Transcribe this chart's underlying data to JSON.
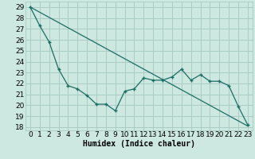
{
  "title": "",
  "xlabel": "Humidex (Indice chaleur)",
  "background_color": "#cce8e0",
  "grid_color": "#aaccc4",
  "line_color": "#1a6e62",
  "xlim": [
    -0.5,
    23.5
  ],
  "ylim": [
    17.7,
    29.5
  ],
  "xticks": [
    0,
    1,
    2,
    3,
    4,
    5,
    6,
    7,
    8,
    9,
    10,
    11,
    12,
    13,
    14,
    15,
    16,
    17,
    18,
    19,
    20,
    21,
    22,
    23
  ],
  "yticks": [
    18,
    19,
    20,
    21,
    22,
    23,
    24,
    25,
    26,
    27,
    28,
    29
  ],
  "line1_x": [
    0,
    1,
    2,
    3,
    4,
    5,
    6,
    7,
    8,
    9,
    10,
    11,
    12,
    13,
    14,
    15,
    16,
    17,
    18,
    19,
    20,
    21,
    22,
    23
  ],
  "line1_y": [
    29,
    27.3,
    25.8,
    23.3,
    21.8,
    21.5,
    20.9,
    20.1,
    20.1,
    19.5,
    21.3,
    21.5,
    22.5,
    22.3,
    22.3,
    22.6,
    23.3,
    22.3,
    22.8,
    22.2,
    22.2,
    21.8,
    19.9,
    18.2
  ],
  "line2_x": [
    0,
    23
  ],
  "line2_y": [
    29.0,
    18.1
  ],
  "fontsize_xlabel": 7,
  "fontsize_tick": 6.5
}
